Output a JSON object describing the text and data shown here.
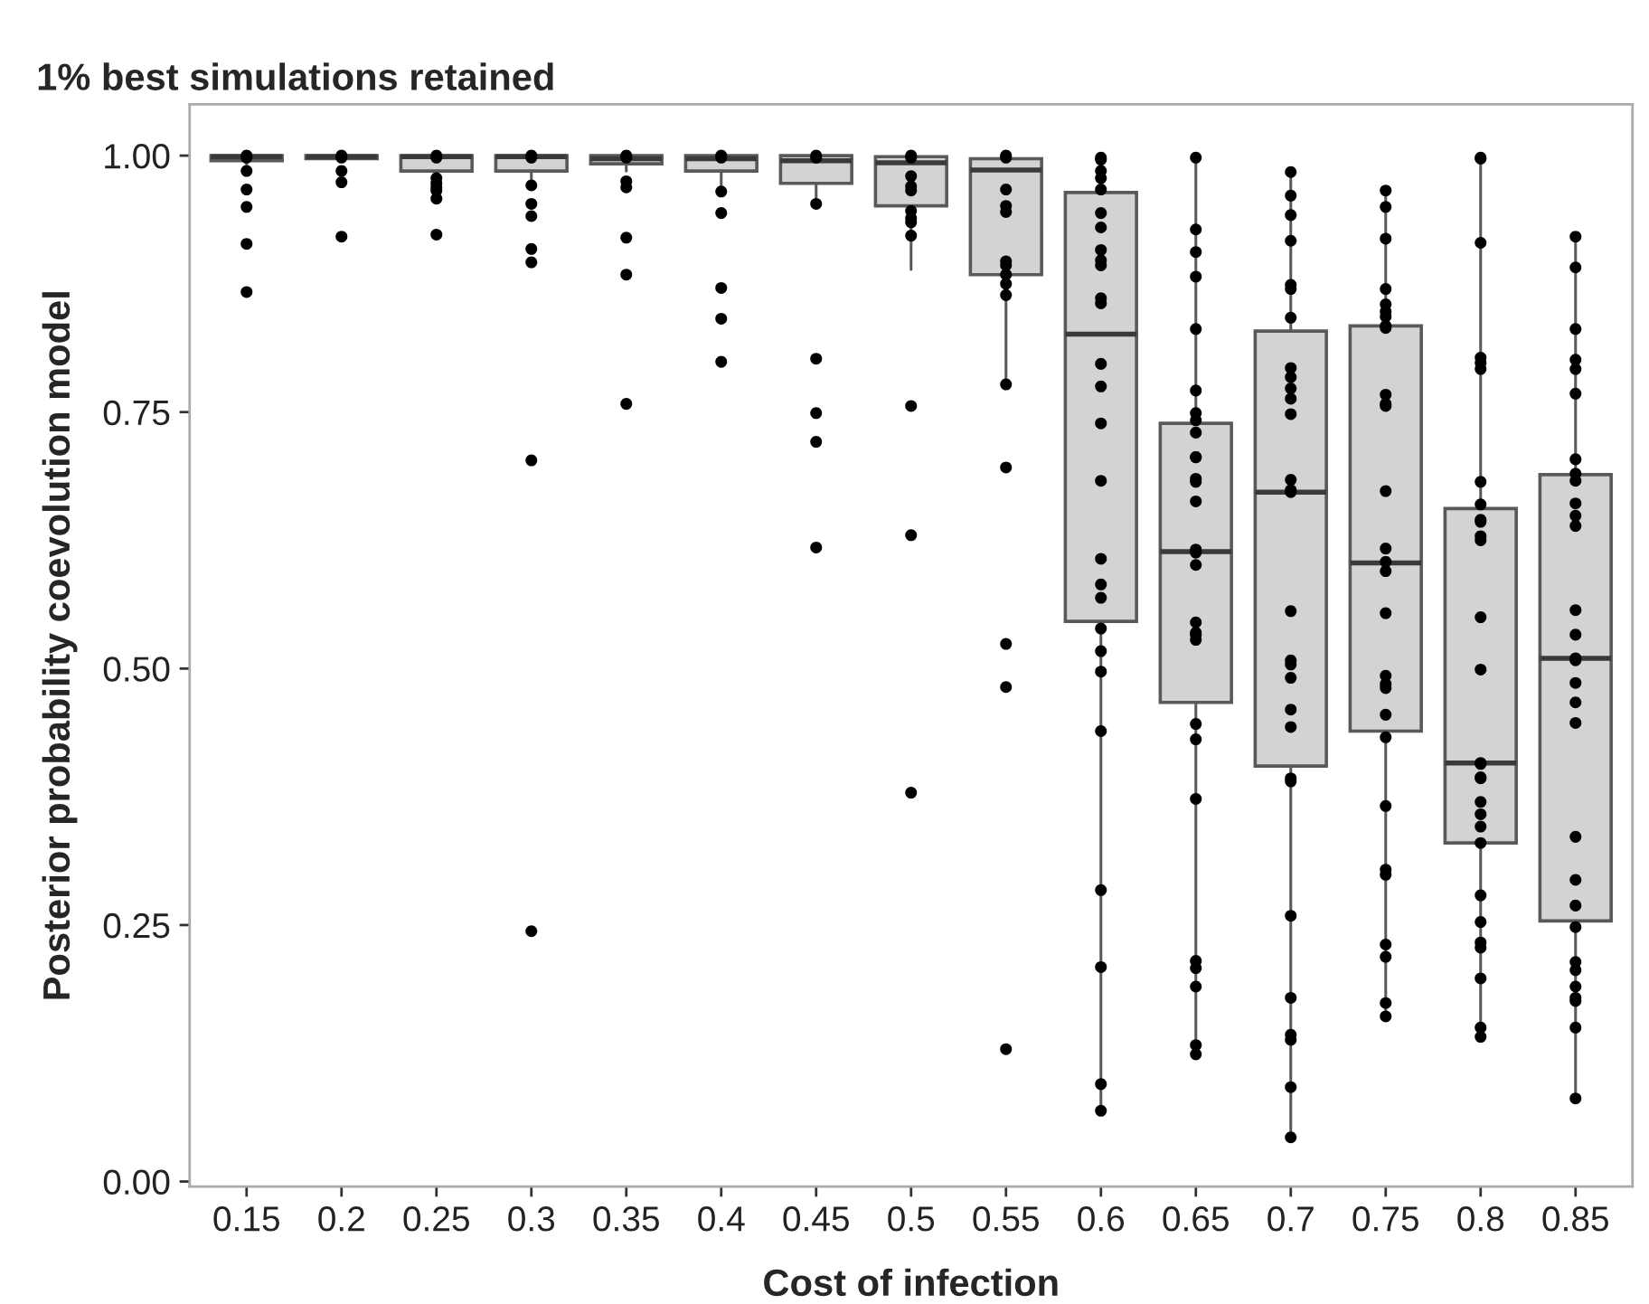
{
  "chart_data": {
    "type": "box",
    "title": "1% best simulations retained",
    "xlabel": "Cost of infection",
    "ylabel": "Posterior probability coevolution model",
    "categories": [
      "0.15",
      "0.2",
      "0.25",
      "0.3",
      "0.35",
      "0.4",
      "0.45",
      "0.5",
      "0.55",
      "0.6",
      "0.65",
      "0.7",
      "0.75",
      "0.8",
      "0.85"
    ],
    "color": "#d3d3d3",
    "boxes": [
      {
        "low": 0.985,
        "q1": 0.995,
        "median": 0.999,
        "q3": 1.0,
        "high": 1.0
      },
      {
        "low": 0.995,
        "q1": 0.997,
        "median": 0.999,
        "q3": 1.0,
        "high": 1.0
      },
      {
        "low": 0.959,
        "q1": 0.985,
        "median": 0.999,
        "q3": 1.0,
        "high": 1.0
      },
      {
        "low": 0.971,
        "q1": 0.985,
        "median": 0.999,
        "q3": 1.0,
        "high": 1.0
      },
      {
        "low": 0.985,
        "q1": 0.992,
        "median": 0.997,
        "q3": 1.0,
        "high": 1.0
      },
      {
        "low": 0.97,
        "q1": 0.985,
        "median": 0.997,
        "q3": 1.0,
        "high": 1.0
      },
      {
        "low": 0.953,
        "q1": 0.973,
        "median": 0.995,
        "q3": 1.0,
        "high": 1.0
      },
      {
        "low": 0.889,
        "q1": 0.951,
        "median": 0.993,
        "q3": 0.999,
        "high": 1.0
      },
      {
        "low": 0.777,
        "q1": 0.884,
        "median": 0.986,
        "q3": 0.997,
        "high": 1.0
      },
      {
        "low": 0.069,
        "q1": 0.546,
        "median": 0.826,
        "q3": 0.964,
        "high": 1.0
      },
      {
        "low": 0.126,
        "q1": 0.467,
        "median": 0.614,
        "q3": 0.739,
        "high": 1.0
      },
      {
        "low": 0.043,
        "q1": 0.405,
        "median": 0.672,
        "q3": 0.829,
        "high": 0.984
      },
      {
        "low": 0.161,
        "q1": 0.439,
        "median": 0.603,
        "q3": 0.834,
        "high": 0.966
      },
      {
        "low": 0.141,
        "q1": 0.33,
        "median": 0.408,
        "q3": 0.656,
        "high": 1.0
      },
      {
        "low": 0.082,
        "q1": 0.254,
        "median": 0.51,
        "q3": 0.689,
        "high": 0.921
      }
    ],
    "series": [
      {
        "type": "scatter",
        "color": "#000000",
        "x": [
          "0.15",
          "0.15",
          "0.15",
          "0.15",
          "0.15",
          "0.15",
          "0.15",
          "0.2",
          "0.2",
          "0.2",
          "0.2",
          "0.2",
          "0.25",
          "0.25",
          "0.25",
          "0.25",
          "0.25",
          "0.25",
          "0.25",
          "0.25",
          "0.3",
          "0.3",
          "0.3",
          "0.3",
          "0.3",
          "0.3",
          "0.3",
          "0.3",
          "0.3",
          "0.35",
          "0.35",
          "0.35",
          "0.35",
          "0.35",
          "0.35",
          "0.35",
          "0.4",
          "0.4",
          "0.4",
          "0.4",
          "0.4",
          "0.4",
          "0.4",
          "0.45",
          "0.45",
          "0.45",
          "0.45",
          "0.45",
          "0.45",
          "0.45",
          "0.5",
          "0.5",
          "0.5",
          "0.5",
          "0.5",
          "0.5",
          "0.5",
          "0.5",
          "0.5",
          "0.5",
          "0.5",
          "0.5",
          "0.55",
          "0.55",
          "0.55",
          "0.55",
          "0.55",
          "0.55",
          "0.55",
          "0.55",
          "0.55",
          "0.55",
          "0.55",
          "0.55",
          "0.55",
          "0.55",
          "0.55",
          "0.6",
          "0.6",
          "0.6",
          "0.6",
          "0.6",
          "0.6",
          "0.6",
          "0.6",
          "0.6",
          "0.6",
          "0.6",
          "0.6",
          "0.6",
          "0.6",
          "0.6",
          "0.6",
          "0.6",
          "0.6",
          "0.6",
          "0.6",
          "0.6",
          "0.6",
          "0.6",
          "0.6",
          "0.6",
          "0.6",
          "0.6",
          "0.65",
          "0.65",
          "0.65",
          "0.65",
          "0.65",
          "0.65",
          "0.65",
          "0.65",
          "0.65",
          "0.65",
          "0.65",
          "0.65",
          "0.65",
          "0.65",
          "0.65",
          "0.65",
          "0.65",
          "0.65",
          "0.65",
          "0.65",
          "0.65",
          "0.65",
          "0.65",
          "0.65",
          "0.65",
          "0.65",
          "0.65",
          "0.65",
          "0.65",
          "0.7",
          "0.7",
          "0.7",
          "0.7",
          "0.7",
          "0.7",
          "0.7",
          "0.7",
          "0.7",
          "0.7",
          "0.7",
          "0.7",
          "0.7",
          "0.7",
          "0.7",
          "0.7",
          "0.7",
          "0.7",
          "0.7",
          "0.7",
          "0.7",
          "0.7",
          "0.7",
          "0.7",
          "0.7",
          "0.7",
          "0.7",
          "0.7",
          "0.7",
          "0.75",
          "0.75",
          "0.75",
          "0.75",
          "0.75",
          "0.75",
          "0.75",
          "0.75",
          "0.75",
          "0.75",
          "0.75",
          "0.75",
          "0.75",
          "0.75",
          "0.75",
          "0.75",
          "0.75",
          "0.75",
          "0.75",
          "0.75",
          "0.75",
          "0.75",
          "0.75",
          "0.75",
          "0.75",
          "0.75",
          "0.75",
          "0.75",
          "0.75",
          "0.8",
          "0.8",
          "0.8",
          "0.8",
          "0.8",
          "0.8",
          "0.8",
          "0.8",
          "0.8",
          "0.8",
          "0.8",
          "0.8",
          "0.8",
          "0.8",
          "0.8",
          "0.8",
          "0.8",
          "0.8",
          "0.8",
          "0.8",
          "0.8",
          "0.8",
          "0.8",
          "0.8",
          "0.8",
          "0.8",
          "0.8",
          "0.8",
          "0.8",
          "0.85",
          "0.85",
          "0.85",
          "0.85",
          "0.85",
          "0.85",
          "0.85",
          "0.85",
          "0.85",
          "0.85",
          "0.85",
          "0.85",
          "0.85",
          "0.85",
          "0.85",
          "0.85",
          "0.85",
          "0.85",
          "0.85",
          "0.85",
          "0.85",
          "0.85",
          "0.85",
          "0.85",
          "0.85",
          "0.85",
          "0.85",
          "0.85",
          "0.85",
          "0.85"
        ],
        "values": [
          1.0,
          0.998,
          0.985,
          0.967,
          0.95,
          0.914,
          0.867,
          1.0,
          0.998,
          0.985,
          0.974,
          0.921,
          1.0,
          0.998,
          0.978,
          0.973,
          0.969,
          0.966,
          0.958,
          0.923,
          1.0,
          0.998,
          0.971,
          0.953,
          0.941,
          0.909,
          0.896,
          0.703,
          0.244,
          1.0,
          0.998,
          0.975,
          0.969,
          0.92,
          0.884,
          0.758,
          1.0,
          0.998,
          0.944,
          0.871,
          0.841,
          0.799,
          0.965,
          1.0,
          0.998,
          0.953,
          0.802,
          0.749,
          0.721,
          0.618,
          1.0,
          0.998,
          0.98,
          0.97,
          0.966,
          0.946,
          0.939,
          0.935,
          0.922,
          0.756,
          0.63,
          0.379,
          1.0,
          0.998,
          0.967,
          0.951,
          0.945,
          0.897,
          0.893,
          0.884,
          0.875,
          0.864,
          0.777,
          0.696,
          0.524,
          0.482,
          0.129,
          0.998,
          0.996,
          0.985,
          0.978,
          0.967,
          0.944,
          0.93,
          0.908,
          0.898,
          0.893,
          0.861,
          0.856,
          0.797,
          0.775,
          0.739,
          0.683,
          0.607,
          0.582,
          0.569,
          0.539,
          0.517,
          0.497,
          0.439,
          0.284,
          0.209,
          0.095,
          0.069,
          0.998,
          0.928,
          0.906,
          0.882,
          0.831,
          0.771,
          0.749,
          0.742,
          0.73,
          0.706,
          0.706,
          0.685,
          0.682,
          0.663,
          0.616,
          0.613,
          0.601,
          0.545,
          0.535,
          0.533,
          0.528,
          0.446,
          0.431,
          0.373,
          0.215,
          0.208,
          0.19,
          0.133,
          0.124,
          0.984,
          0.961,
          0.942,
          0.917,
          0.874,
          0.87,
          0.842,
          0.793,
          0.784,
          0.773,
          0.763,
          0.748,
          0.684,
          0.674,
          0.672,
          0.556,
          0.508,
          0.504,
          0.491,
          0.46,
          0.443,
          0.393,
          0.39,
          0.259,
          0.179,
          0.143,
          0.138,
          0.092,
          0.043,
          0.966,
          0.95,
          0.919,
          0.87,
          0.855,
          0.848,
          0.843,
          0.834,
          0.832,
          0.767,
          0.758,
          0.756,
          0.673,
          0.617,
          0.604,
          0.595,
          0.554,
          0.493,
          0.485,
          0.481,
          0.455,
          0.433,
          0.366,
          0.304,
          0.299,
          0.231,
          0.219,
          0.174,
          0.161,
          0.998,
          0.997,
          0.915,
          0.803,
          0.798,
          0.792,
          0.682,
          0.66,
          0.645,
          0.643,
          0.629,
          0.625,
          0.55,
          0.499,
          0.408,
          0.407,
          0.394,
          0.393,
          0.37,
          0.358,
          0.346,
          0.33,
          0.279,
          0.253,
          0.233,
          0.228,
          0.198,
          0.15,
          0.141,
          0.921,
          0.891,
          0.831,
          0.801,
          0.792,
          0.768,
          0.704,
          0.69,
          0.683,
          0.661,
          0.649,
          0.639,
          0.557,
          0.533,
          0.51,
          0.508,
          0.486,
          0.467,
          0.447,
          0.336,
          0.294,
          0.269,
          0.248,
          0.214,
          0.206,
          0.19,
          0.179,
          0.176,
          0.15,
          0.081
        ]
      }
    ],
    "ylim": [
      -0.005,
      1.05
    ],
    "yticks": [
      {
        "value": 0,
        "label": "0.00"
      },
      {
        "value": 0.25,
        "label": "0.25"
      },
      {
        "value": 0.5,
        "label": "0.50"
      },
      {
        "value": 0.75,
        "label": "0.75"
      },
      {
        "value": 1,
        "label": "1.00"
      }
    ],
    "grid": false
  }
}
